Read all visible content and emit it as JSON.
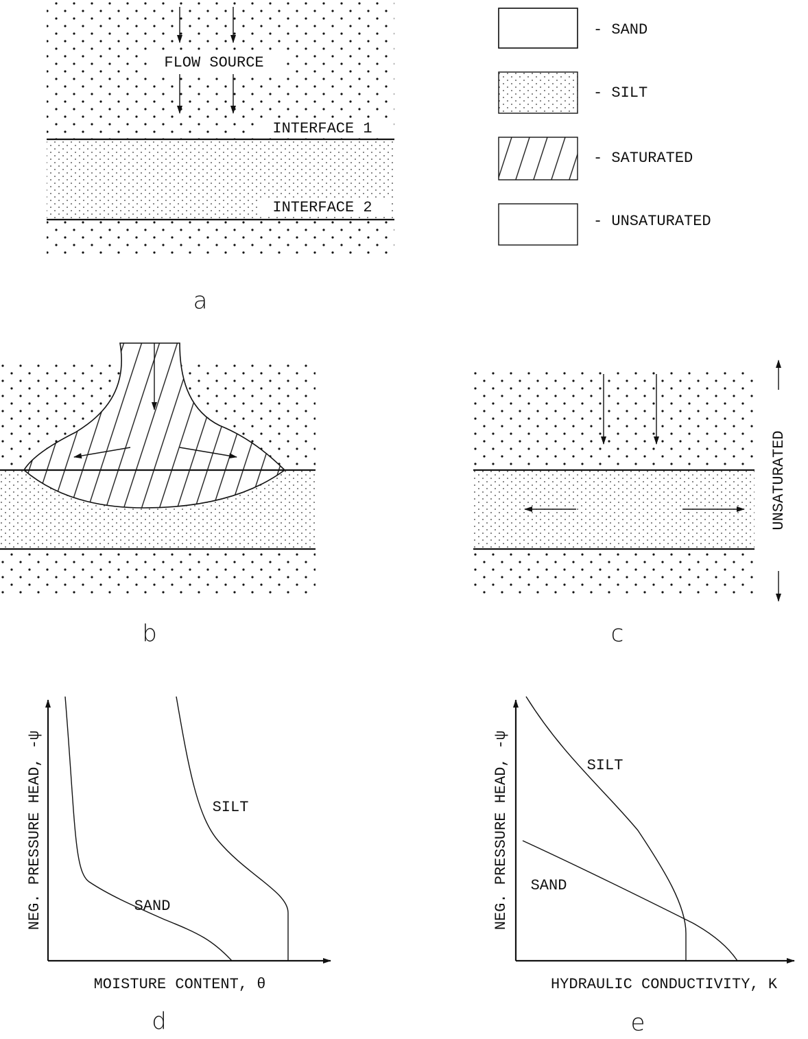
{
  "panel_a": {
    "flow_source": "FLOW SOURCE",
    "interface_1": "INTERFACE 1",
    "interface_2": "INTERFACE 2",
    "label": "a"
  },
  "legend": {
    "items": [
      "- SAND",
      "- SILT",
      "- SATURATED",
      "- UNSATURATED"
    ]
  },
  "panel_b": {
    "label": "b"
  },
  "panel_c": {
    "side_label": "UNSATURATED",
    "label": "c"
  },
  "panel_d": {
    "y_label": "NEG. PRESSURE HEAD, -ψ",
    "x_label": "MOISTURE CONTENT, θ",
    "curve_labels": [
      "SILT",
      "SAND"
    ],
    "label": "d"
  },
  "panel_e": {
    "y_label": "NEG. PRESSURE HEAD, -ψ",
    "x_label": "HYDRAULIC CONDUCTIVITY, K",
    "curve_labels": [
      "SILT",
      "SAND"
    ],
    "label": "e"
  }
}
